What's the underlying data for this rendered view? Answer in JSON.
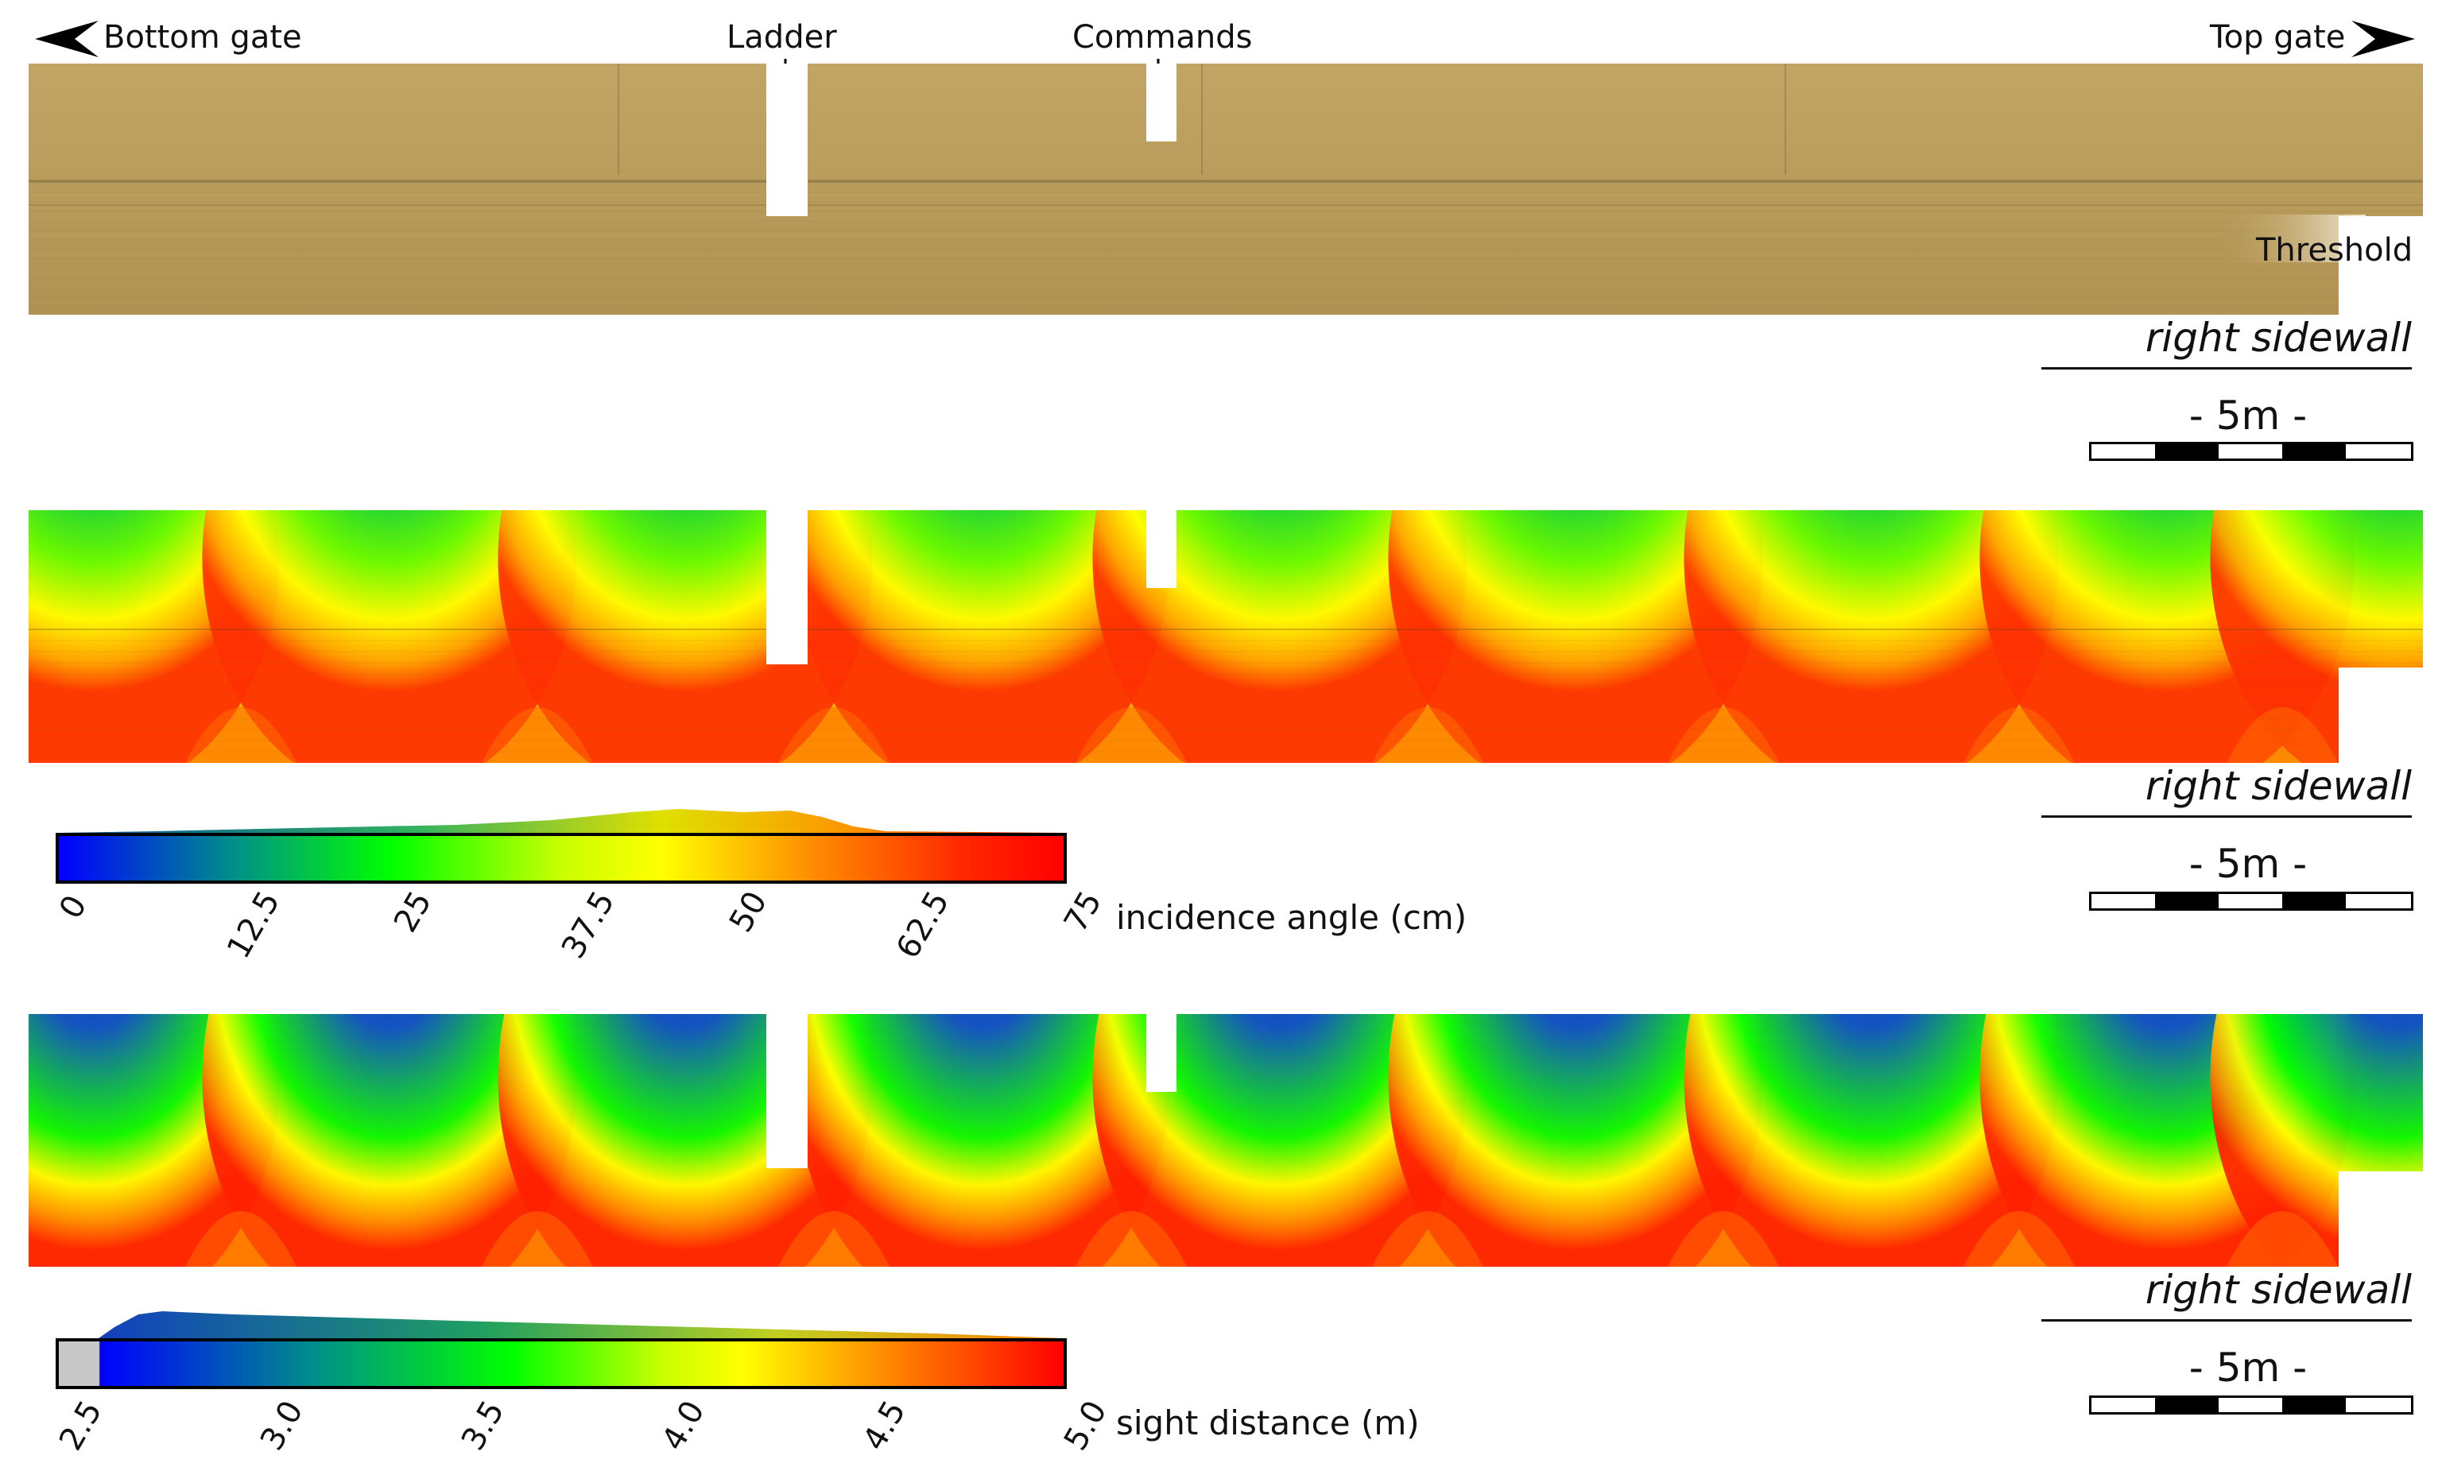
{
  "header": {
    "bottom_gate": "Bottom gate",
    "ladder": "Ladder",
    "commands": "Commands",
    "top_gate": "Top gate",
    "threshold": "Threshold"
  },
  "panels": [
    {
      "sidewall_label": "right sidewall",
      "scale_label": "- 5m -"
    },
    {
      "sidewall_label": "right sidewall",
      "scale_label": "- 5m -"
    },
    {
      "sidewall_label": "right sidewall",
      "scale_label": "- 5m -"
    }
  ],
  "colorbars": [
    {
      "title": "incidence angle (cm)",
      "ticks": [
        "0",
        "12.5",
        "25",
        "37.5",
        "50",
        "62.5",
        "75"
      ],
      "range": [
        0,
        75
      ]
    },
    {
      "title": "sight distance (m)",
      "ticks": [
        "2.5",
        "3.0",
        "3.5",
        "4.0",
        "4.5",
        "5.0"
      ],
      "range": [
        2.5,
        5.0
      ]
    }
  ],
  "colors": {
    "wall_texture": "#bb9e5c",
    "colormap": [
      "#0000ff",
      "#00ff00",
      "#ffff00",
      "#ff8000",
      "#ff0000"
    ],
    "nodata": "#c8c8c8"
  }
}
